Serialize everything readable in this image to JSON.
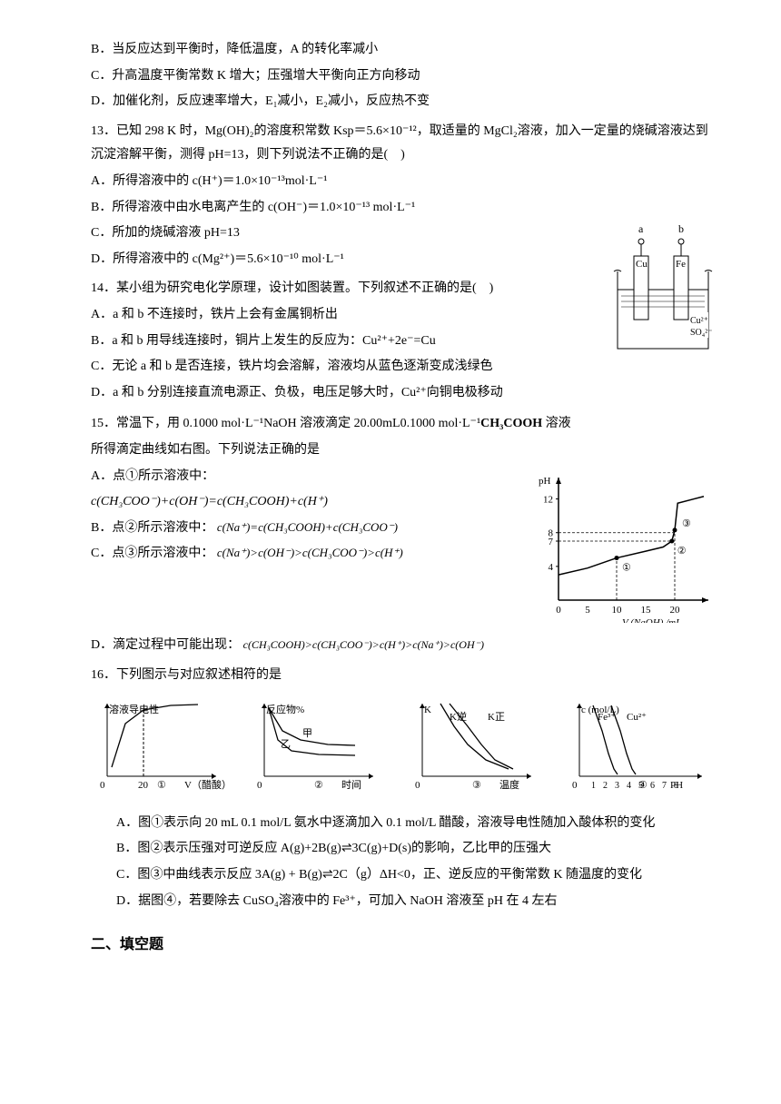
{
  "q12": {
    "B": "B．当反应达到平衡时，降低温度，A 的转化率减小",
    "C": "C．升高温度平衡常数 K 增大；压强增大平衡向正方向移动",
    "D": "D．加催化剂，反应速率增大，E₁减小，E₂减小，反应热不变"
  },
  "q13": {
    "stem": "13．已知 298 K 时，Mg(OH)₂的溶度积常数 Ksp＝5.6×10⁻¹²，取适量的 MgCl₂溶液，加入一定量的烧碱溶液达到沉淀溶解平衡，测得 pH=13，则下列说法不正确的是(　)",
    "A": "A．所得溶液中的 c(H⁺)＝1.0×10⁻¹³mol·L⁻¹",
    "B": "B．所得溶液中由水电离产生的 c(OH⁻)＝1.0×10⁻¹³ mol·L⁻¹",
    "C": "C．所加的烧碱溶液 pH=13",
    "D": "D．所得溶液中的 c(Mg²⁺)＝5.6×10⁻¹⁰ mol·L⁻¹"
  },
  "q14": {
    "stem": "14．某小组为研究电化学原理，设计如图装置。下列叙述不正确的是(　)",
    "A": "A．a 和 b 不连接时，铁片上会有金属铜析出",
    "B": "B．a 和 b 用导线连接时，铜片上发生的反应为：Cu²⁺+2e⁻=Cu",
    "C": "C．无论 a 和 b 是否连接，铁片均会溶解，溶液均从蓝色逐渐变成浅绿色",
    "D": "D．a 和 b 分别连接直流电源正、负极，电压足够大时，Cu²⁺向铜电极移动",
    "fig": {
      "electrodes": [
        "Cu",
        "Fe"
      ],
      "terminals": [
        "a",
        "b"
      ],
      "ions": [
        "Cu²⁺",
        "SO₄²⁻"
      ],
      "beaker_stroke": "#000000",
      "line_width": 1
    }
  },
  "q15": {
    "stem_a": "15．常温下，用 0.1000 mol·L⁻¹NaOH 溶液滴定 20.00mL0.1000 mol·L⁻¹",
    "stem_bold": "CH₃COOH",
    "stem_b": "溶液",
    "line2": "所得滴定曲线如右图。下列说法正确的是",
    "A_label": "A．点①所示溶液中：",
    "A_eq": "c(CH₃COO⁻)+c(OH⁻)=c(CH₃COOH)+c(H⁺)",
    "B_label": "B．点②所示溶液中：",
    "B_eq": "c(Na⁺)=c(CH₃COOH)+c(CH₃COO⁻)",
    "C_label": "C．点③所示溶液中：",
    "C_eq": "c(Na⁺)>c(OH⁻)>c(CH₃COO⁻)>c(H⁺)",
    "D_label": "D．滴定过程中可能出现：",
    "D_eq": "c(CH₃COOH)>c(CH₃COO⁻)>c(H⁺)>c(Na⁺)>c(OH⁻)",
    "chart": {
      "type": "line",
      "xlabel": "V (NaOH) /mL",
      "ylabel": "pH",
      "xlim": [
        0,
        25
      ],
      "xtick_step": 5,
      "xticks": [
        "0",
        "5",
        "10",
        "15",
        "20"
      ],
      "ylim": [
        0,
        14
      ],
      "yticks": [
        "4",
        "7",
        "8",
        "12"
      ],
      "ydash": [
        7,
        8
      ],
      "xdash": [
        10,
        20
      ],
      "markers": [
        "①",
        "②",
        "③"
      ],
      "marker_positions": [
        [
          10,
          5
        ],
        [
          19.5,
          7
        ],
        [
          20,
          8.3
        ]
      ],
      "curve_points": [
        [
          0,
          3
        ],
        [
          5,
          3.8
        ],
        [
          10,
          5
        ],
        [
          15,
          5.8
        ],
        [
          18,
          6.3
        ],
        [
          19.5,
          7
        ],
        [
          20,
          8.3
        ],
        [
          20.5,
          11.5
        ],
        [
          25,
          12.3
        ]
      ],
      "line_color": "#000000",
      "line_width": 1.5,
      "bg": "#ffffff",
      "grid": false
    }
  },
  "q16": {
    "stem": "16．下列图示与对应叙述相符的是",
    "A": "A．图①表示向 20 mL 0.1 mol/L 氨水中逐滴加入 0.1 mol/L 醋酸，溶液导电性随加入酸体积的变化",
    "B": "B．图②表示压强对可逆反应 A(g)+2B(g)⇌3C(g)+D(s)的影响，乙比甲的压强大",
    "C": "C．图③中曲线表示反应 3A(g) + B(g)⇌2C（g）ΔH<0，正、逆反应的平衡常数 K 随温度的变化",
    "D": "D．据图④，若要除去 CuSO₄溶液中的 Fe³⁺，可加入 NaOH 溶液至 pH 在 4 左右",
    "figs": {
      "g1": {
        "ylabel": "溶液导电性",
        "xlabel": "V（醋酸）/mL",
        "xtick": "20",
        "num": "①",
        "curve": [
          [
            5,
            10
          ],
          [
            20,
            58
          ],
          [
            40,
            73
          ],
          [
            70,
            78
          ],
          [
            100,
            79
          ]
        ],
        "dash_x": 40,
        "color": "#000"
      },
      "g2": {
        "ylabel": "反应物%",
        "xlabel": "时间",
        "num": "②",
        "labels": [
          "甲",
          "乙"
        ],
        "curve1": [
          [
            5,
            75
          ],
          [
            20,
            50
          ],
          [
            40,
            40
          ],
          [
            70,
            35
          ],
          [
            100,
            34
          ]
        ],
        "curve2": [
          [
            5,
            75
          ],
          [
            15,
            40
          ],
          [
            30,
            28
          ],
          [
            60,
            24
          ],
          [
            100,
            23
          ]
        ],
        "color": "#000"
      },
      "g3": {
        "ylabel": "K",
        "xlabel": "温度",
        "num": "③",
        "labels": [
          "K逆",
          "K正"
        ],
        "curve1": [
          [
            20,
            80
          ],
          [
            35,
            55
          ],
          [
            50,
            35
          ],
          [
            70,
            18
          ],
          [
            95,
            8
          ]
        ],
        "curve2": [
          [
            30,
            80
          ],
          [
            50,
            55
          ],
          [
            65,
            35
          ],
          [
            80,
            18
          ],
          [
            100,
            8
          ]
        ],
        "color": "#000"
      },
      "g4": {
        "ylabel": "c (mol/L)",
        "xlabel": "PH",
        "num": "④",
        "labels": [
          "Fe³⁺",
          "Cu²⁺"
        ],
        "xticks": [
          "0",
          "1",
          "2",
          "3",
          "4",
          "5",
          "6",
          "7",
          "8"
        ],
        "curve1": [
          [
            15,
            78
          ],
          [
            25,
            50
          ],
          [
            32,
            25
          ],
          [
            38,
            8
          ],
          [
            42,
            2
          ]
        ],
        "curve2": [
          [
            35,
            78
          ],
          [
            45,
            50
          ],
          [
            52,
            25
          ],
          [
            58,
            8
          ],
          [
            62,
            2
          ]
        ],
        "color": "#000"
      }
    }
  },
  "section2": "二、填空题"
}
